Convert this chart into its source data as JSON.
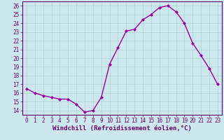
{
  "x": [
    0,
    1,
    2,
    3,
    4,
    5,
    6,
    7,
    8,
    9,
    10,
    11,
    12,
    13,
    14,
    15,
    16,
    17,
    18,
    19,
    20,
    21,
    22,
    23
  ],
  "y": [
    16.5,
    16.0,
    15.7,
    15.5,
    15.3,
    15.3,
    14.7,
    13.8,
    14.0,
    15.5,
    19.3,
    21.2,
    23.1,
    23.3,
    24.4,
    25.0,
    25.8,
    26.0,
    25.3,
    24.0,
    21.7,
    20.3,
    18.8,
    17.0
  ],
  "line_color": "#990099",
  "marker": "D",
  "markersize": 2,
  "linewidth": 1.0,
  "bg_color": "#cce8ee",
  "grid_color": "#aacccc",
  "xlabel": "Windchill (Refroidissement éolien,°C)",
  "xlabel_fontsize": 6.5,
  "xtick_fontsize": 5.5,
  "ytick_fontsize": 5.5,
  "ylim": [
    13.5,
    26.5
  ],
  "xlim": [
    -0.5,
    23.5
  ],
  "yticks": [
    14,
    15,
    16,
    17,
    18,
    19,
    20,
    21,
    22,
    23,
    24,
    25,
    26
  ],
  "xticks": [
    0,
    1,
    2,
    3,
    4,
    5,
    6,
    7,
    8,
    9,
    10,
    11,
    12,
    13,
    14,
    15,
    16,
    17,
    18,
    19,
    20,
    21,
    22,
    23
  ],
  "spine_color": "#660066",
  "tick_color": "#660066",
  "label_color": "#660066",
  "grid_linewidth": 0.4
}
